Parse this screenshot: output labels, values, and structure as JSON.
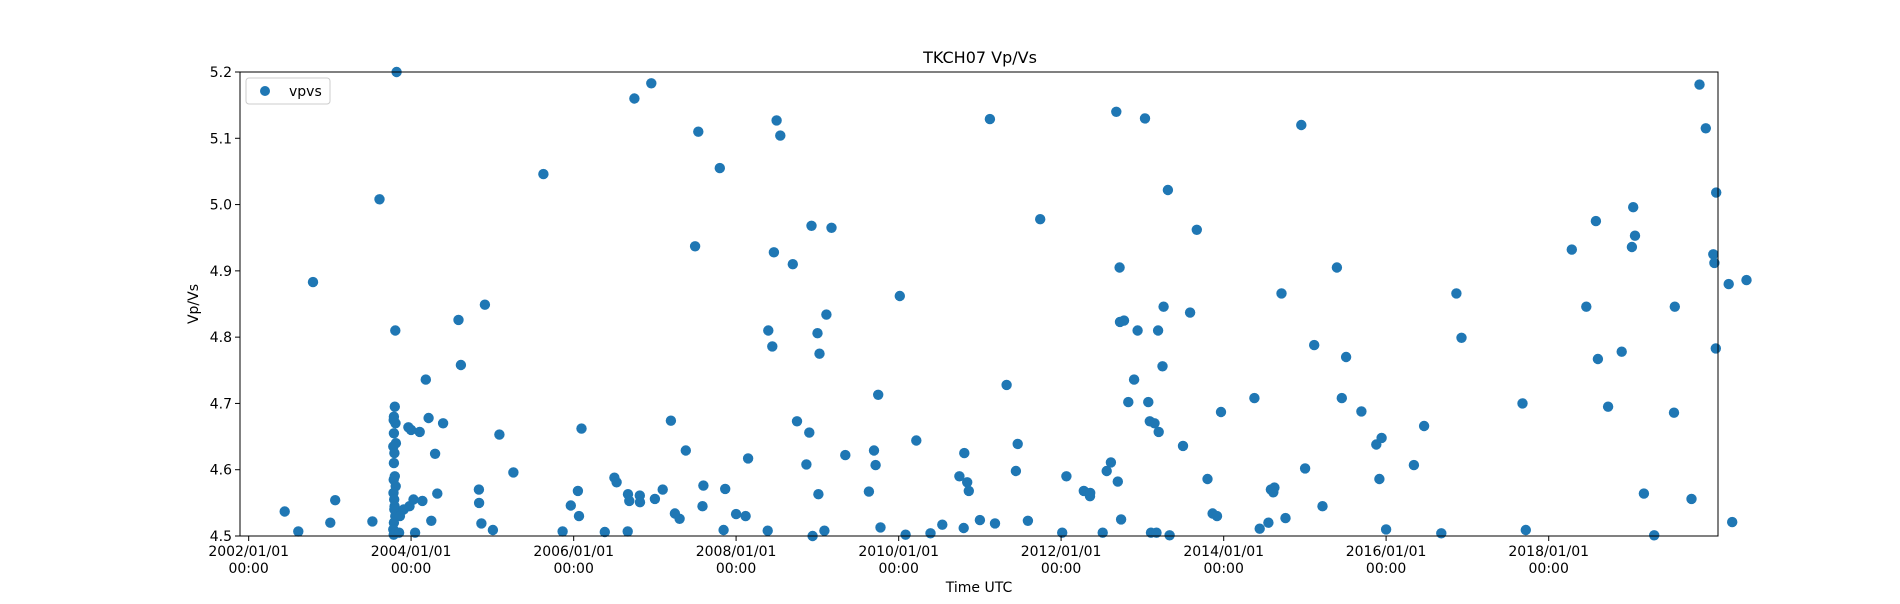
{
  "chart_data": {
    "type": "scatter",
    "title": "TKCH07 Vp/Vs",
    "xlabel": "Time UTC",
    "ylabel": "Vp/Vs",
    "xlim": [
      "2001-11-23",
      "2020-02-01"
    ],
    "ylim": [
      4.5,
      5.2
    ],
    "grid": false,
    "legend_position": "top-left",
    "marker_color": "#1f77b4",
    "xticks": [
      {
        "date": "2002-01-01",
        "label": "2002/01/01\n00:00"
      },
      {
        "date": "2004-01-01",
        "label": "2004/01/01\n00:00"
      },
      {
        "date": "2006-01-01",
        "label": "2006/01/01\n00:00"
      },
      {
        "date": "2008-01-01",
        "label": "2008/01/01\n00:00"
      },
      {
        "date": "2010-01-01",
        "label": "2010/01/01\n00:00"
      },
      {
        "date": "2012-01-01",
        "label": "2012/01/01\n00:00"
      },
      {
        "date": "2014-01-01",
        "label": "2014/01/01\n00:00"
      },
      {
        "date": "2016-01-01",
        "label": "2016/01/01\n00:00"
      },
      {
        "date": "2018-01-01",
        "label": "2018/01/01\n00:00"
      }
    ],
    "yticks": [
      {
        "value": 4.5,
        "label": "4.5"
      },
      {
        "value": 4.6,
        "label": "4.6"
      },
      {
        "value": 4.7,
        "label": "4.7"
      },
      {
        "value": 4.8,
        "label": "4.8"
      },
      {
        "value": 4.9,
        "label": "4.9"
      },
      {
        "value": 5.0,
        "label": "5.0"
      },
      {
        "value": 5.1,
        "label": "5.1"
      },
      {
        "value": 5.2,
        "label": "5.2"
      }
    ],
    "series": [
      {
        "name": "vpvs",
        "points": [
          [
            "2002-06-12",
            4.537
          ],
          [
            "2002-08-12",
            4.507
          ],
          [
            "2002-10-17",
            4.883
          ],
          [
            "2003-01-03",
            4.52
          ],
          [
            "2003-01-25",
            4.554
          ],
          [
            "2003-07-11",
            4.522
          ],
          [
            "2003-08-12",
            5.008
          ],
          [
            "2003-10-28",
            5.2
          ],
          [
            "2003-10-22",
            4.81
          ],
          [
            "2003-10-20",
            4.695
          ],
          [
            "2003-10-16",
            4.68
          ],
          [
            "2003-10-15",
            4.675
          ],
          [
            "2003-10-23",
            4.67
          ],
          [
            "2003-10-16",
            4.655
          ],
          [
            "2003-10-25",
            4.64
          ],
          [
            "2003-10-13",
            4.635
          ],
          [
            "2003-10-18",
            4.625
          ],
          [
            "2003-10-16",
            4.61
          ],
          [
            "2003-10-20",
            4.59
          ],
          [
            "2003-10-15",
            4.585
          ],
          [
            "2003-10-24",
            4.575
          ],
          [
            "2003-10-14",
            4.565
          ],
          [
            "2003-10-17",
            4.555
          ],
          [
            "2003-10-19",
            4.545
          ],
          [
            "2003-10-18",
            4.54
          ],
          [
            "2003-10-22",
            4.53
          ],
          [
            "2003-10-16",
            4.52
          ],
          [
            "2003-10-13",
            4.51
          ],
          [
            "2003-10-21",
            4.505
          ],
          [
            "2003-10-15",
            4.502
          ],
          [
            "2003-12-25",
            4.545
          ],
          [
            "2003-11-29",
            4.54
          ],
          [
            "2003-11-12",
            4.53
          ],
          [
            "2003-11-08",
            4.505
          ],
          [
            "2004-01-19",
            4.505
          ],
          [
            "2004-01-12",
            4.555
          ],
          [
            "2004-02-21",
            4.553
          ],
          [
            "2004-01-01",
            4.66
          ],
          [
            "2004-02-09",
            4.657
          ],
          [
            "2003-12-20",
            4.664
          ],
          [
            "2004-03-07",
            4.736
          ],
          [
            "2004-03-20",
            4.678
          ],
          [
            "2004-04-01",
            4.523
          ],
          [
            "2004-04-18",
            4.624
          ],
          [
            "2004-04-28",
            4.564
          ],
          [
            "2004-05-24",
            4.67
          ],
          [
            "2004-08-01",
            4.826
          ],
          [
            "2004-08-12",
            4.758
          ],
          [
            "2004-11-01",
            4.57
          ],
          [
            "2004-11-02",
            4.55
          ],
          [
            "2004-11-12",
            4.519
          ],
          [
            "2004-11-28",
            4.849
          ],
          [
            "2005-01-03",
            4.509
          ],
          [
            "2005-02-01",
            4.653
          ],
          [
            "2005-04-05",
            4.596
          ],
          [
            "2005-08-18",
            5.046
          ],
          [
            "2005-11-12",
            4.507
          ],
          [
            "2005-12-19",
            4.546
          ],
          [
            "2006-01-20",
            4.568
          ],
          [
            "2006-01-25",
            4.53
          ],
          [
            "2006-02-05",
            4.662
          ],
          [
            "2006-05-21",
            4.506
          ],
          [
            "2006-07-03",
            4.588
          ],
          [
            "2006-07-13",
            4.581
          ],
          [
            "2006-09-01",
            4.507
          ],
          [
            "2006-09-02",
            4.563
          ],
          [
            "2006-09-08",
            4.553
          ],
          [
            "2006-10-01",
            5.16
          ],
          [
            "2006-10-25",
            4.561
          ],
          [
            "2006-10-26",
            4.551
          ],
          [
            "2006-12-16",
            5.183
          ],
          [
            "2007-01-01",
            4.556
          ],
          [
            "2007-02-05",
            4.57
          ],
          [
            "2007-03-14",
            4.674
          ],
          [
            "2007-04-22",
            4.526
          ],
          [
            "2007-04-01",
            4.534
          ],
          [
            "2007-08-03",
            4.545
          ],
          [
            "2007-11-06",
            4.509
          ],
          [
            "2007-05-20",
            4.629
          ],
          [
            "2007-07-01",
            4.937
          ],
          [
            "2007-07-15",
            5.11
          ],
          [
            "2007-08-07",
            4.576
          ],
          [
            "2007-10-20",
            5.055
          ],
          [
            "2007-11-13",
            4.571
          ],
          [
            "2008-01-01",
            4.533
          ],
          [
            "2008-02-13",
            4.53
          ],
          [
            "2008-02-24",
            4.617
          ],
          [
            "2008-05-22",
            4.508
          ],
          [
            "2008-05-25",
            4.81
          ],
          [
            "2008-06-12",
            4.786
          ],
          [
            "2008-06-19",
            4.928
          ],
          [
            "2008-07-01",
            5.127
          ],
          [
            "2008-07-18",
            5.104
          ],
          [
            "2008-09-12",
            4.91
          ],
          [
            "2008-10-01",
            4.673
          ],
          [
            "2008-11-12",
            4.608
          ],
          [
            "2008-11-25",
            4.656
          ],
          [
            "2008-12-05",
            4.968
          ],
          [
            "2009-01-01",
            4.806
          ],
          [
            "2009-01-05",
            4.563
          ],
          [
            "2009-01-10",
            4.775
          ],
          [
            "2009-02-01",
            4.508
          ],
          [
            "2009-02-10",
            4.834
          ],
          [
            "2009-03-05",
            4.965
          ],
          [
            "2009-05-06",
            4.622
          ],
          [
            "2008-12-10",
            4.5
          ],
          [
            "2009-08-20",
            4.567
          ],
          [
            "2009-09-12",
            4.629
          ],
          [
            "2009-09-19",
            4.607
          ],
          [
            "2009-10-01",
            4.713
          ],
          [
            "2009-10-11",
            4.513
          ],
          [
            "2010-01-06",
            4.862
          ],
          [
            "2010-02-01",
            4.502
          ],
          [
            "2010-03-21",
            4.644
          ],
          [
            "2010-05-24",
            4.504
          ],
          [
            "2010-07-16",
            4.517
          ],
          [
            "2010-10-01",
            4.59
          ],
          [
            "2010-10-20",
            4.512
          ],
          [
            "2010-10-23",
            4.625
          ],
          [
            "2010-11-05",
            4.581
          ],
          [
            "2010-11-12",
            4.568
          ],
          [
            "2011-01-01",
            4.524
          ],
          [
            "2011-02-15",
            5.129
          ],
          [
            "2011-03-10",
            4.519
          ],
          [
            "2011-05-01",
            4.728
          ],
          [
            "2011-06-12",
            4.598
          ],
          [
            "2011-06-20",
            4.639
          ],
          [
            "2011-08-05",
            4.523
          ],
          [
            "2011-09-29",
            4.978
          ],
          [
            "2012-01-06",
            4.505
          ],
          [
            "2012-01-25",
            4.59
          ],
          [
            "2012-04-12",
            4.568
          ],
          [
            "2012-05-10",
            4.56
          ],
          [
            "2012-05-11",
            4.565
          ],
          [
            "2012-07-06",
            4.505
          ],
          [
            "2012-07-24",
            4.598
          ],
          [
            "2012-08-12",
            4.611
          ],
          [
            "2012-09-05",
            5.14
          ],
          [
            "2012-09-12",
            4.582
          ],
          [
            "2012-09-27",
            4.525
          ],
          [
            "2012-09-20",
            4.905
          ],
          [
            "2012-09-22",
            4.823
          ],
          [
            "2012-10-10",
            4.825
          ],
          [
            "2012-10-29",
            4.702
          ],
          [
            "2012-11-24",
            4.736
          ],
          [
            "2012-12-10",
            4.81
          ],
          [
            "2013-01-12",
            5.13
          ],
          [
            "2013-01-27",
            4.702
          ],
          [
            "2013-02-03",
            4.673
          ],
          [
            "2013-02-08",
            4.505
          ],
          [
            "2013-02-24",
            4.67
          ],
          [
            "2013-03-05",
            4.505
          ],
          [
            "2013-03-12",
            4.81
          ],
          [
            "2013-03-15",
            4.657
          ],
          [
            "2013-04-01",
            4.756
          ],
          [
            "2013-04-06",
            4.846
          ],
          [
            "2013-04-25",
            5.022
          ],
          [
            "2013-05-03",
            4.501
          ],
          [
            "2013-07-02",
            4.636
          ],
          [
            "2013-08-03",
            4.837
          ],
          [
            "2013-09-02",
            4.962
          ],
          [
            "2013-10-20",
            4.586
          ],
          [
            "2013-11-12",
            4.534
          ],
          [
            "2013-12-02",
            4.53
          ],
          [
            "2013-12-20",
            4.687
          ],
          [
            "2014-05-19",
            4.708
          ],
          [
            "2014-06-12",
            4.511
          ],
          [
            "2014-07-21",
            4.52
          ],
          [
            "2014-08-01",
            4.57
          ],
          [
            "2014-08-12",
            4.566
          ],
          [
            "2014-08-17",
            4.573
          ],
          [
            "2014-09-18",
            4.866
          ],
          [
            "2014-10-06",
            4.527
          ],
          [
            "2014-12-16",
            5.12
          ],
          [
            "2015-01-02",
            4.602
          ],
          [
            "2015-02-12",
            4.788
          ],
          [
            "2015-03-21",
            4.545
          ],
          [
            "2015-05-25",
            4.905
          ],
          [
            "2015-06-16",
            4.708
          ],
          [
            "2015-07-05",
            4.77
          ],
          [
            "2015-09-12",
            4.688
          ],
          [
            "2015-11-18",
            4.638
          ],
          [
            "2015-12-12",
            4.648
          ],
          [
            "2015-12-02",
            4.586
          ],
          [
            "2016-01-01",
            4.51
          ],
          [
            "2016-05-05",
            4.607
          ],
          [
            "2016-06-20",
            4.666
          ],
          [
            "2016-09-05",
            4.504
          ],
          [
            "2016-11-12",
            4.866
          ],
          [
            "2016-12-05",
            4.799
          ],
          [
            "2017-09-05",
            4.7
          ],
          [
            "2017-09-20",
            4.509
          ],
          [
            "2018-04-15",
            4.932
          ],
          [
            "2018-06-19",
            4.846
          ],
          [
            "2018-08-01",
            4.975
          ],
          [
            "2018-08-10",
            4.767
          ],
          [
            "2018-09-25",
            4.695
          ],
          [
            "2018-11-25",
            4.778
          ],
          [
            "2019-01-10",
            4.936
          ],
          [
            "2019-01-24",
            4.953
          ],
          [
            "2019-01-16",
            4.996
          ],
          [
            "2019-03-05",
            4.564
          ],
          [
            "2019-04-20",
            4.501
          ],
          [
            "2019-07-22",
            4.846
          ],
          [
            "2019-07-18",
            4.686
          ],
          [
            "2019-10-05",
            4.556
          ],
          [
            "2019-11-10",
            5.181
          ],
          [
            "2019-12-08",
            5.115
          ],
          [
            "2020-01-11",
            4.925
          ],
          [
            "2020-01-24",
            5.018
          ],
          [
            "2020-01-16",
            4.912
          ],
          [
            "2020-01-22",
            4.783
          ],
          [
            "2020-03-20",
            4.88
          ],
          [
            "2020-04-05",
            4.521
          ],
          [
            "2020-06-08",
            4.886
          ]
        ]
      }
    ]
  }
}
